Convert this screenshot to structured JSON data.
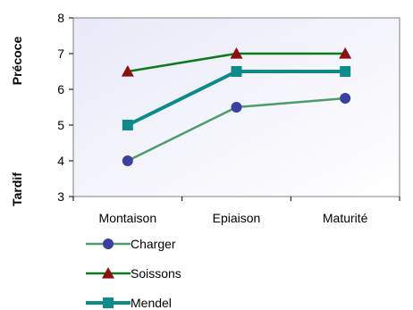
{
  "chart_data": {
    "type": "line",
    "categories": [
      "Montaison",
      "Epiaison",
      "Maturité"
    ],
    "ylim": [
      3,
      8
    ],
    "yticks": [
      3,
      4,
      5,
      6,
      7,
      8
    ],
    "y_axis_annotations": {
      "top": "Précoce",
      "bottom": "Tardif"
    },
    "grid": false,
    "legend_position": "bottom-left",
    "plot_background": [
      "#e9e9f8",
      "#ffffff"
    ],
    "series": [
      {
        "name": "Charger",
        "values": [
          4.0,
          5.5,
          5.75
        ],
        "color": "#4f9c6b",
        "marker": "circle",
        "marker_color": "#3a3fa0"
      },
      {
        "name": "Soissons",
        "values": [
          6.5,
          7.0,
          7.0
        ],
        "color": "#0f7a1d",
        "marker": "triangle",
        "marker_color": "#8b1111"
      },
      {
        "name": "Mendel",
        "values": [
          5.0,
          6.5,
          6.5
        ],
        "color": "#0f8a8a",
        "marker": "square",
        "marker_color": "#0f8a8a"
      }
    ]
  }
}
